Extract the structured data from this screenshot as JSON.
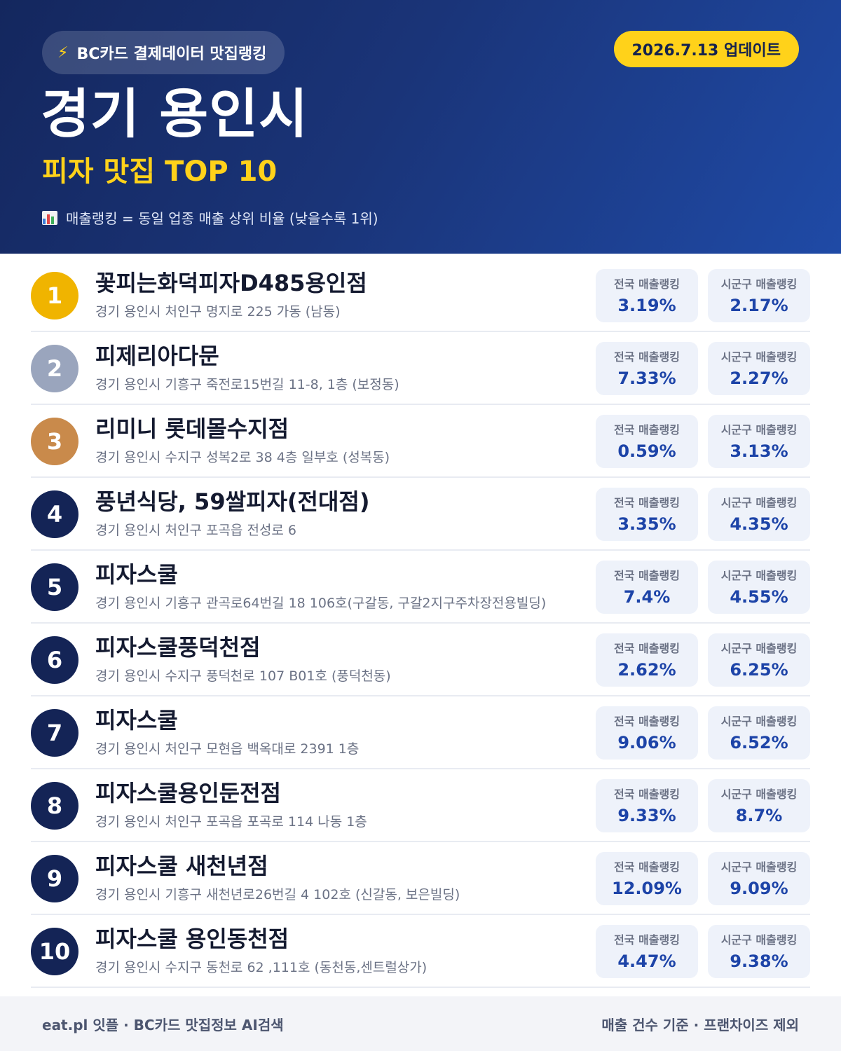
{
  "header": {
    "source_label": "BC카드 결제데이터 맛집랭킹",
    "update_label": "2026.7.13 업데이트",
    "title": "경기 용인시",
    "subtitle": "피자 맛집 TOP 10",
    "note": "매출랭킹 = 동일 업종 매출 상위 비율 (낮을수록 1위)"
  },
  "colors": {
    "gold": "#f0b400",
    "silver": "#9aa5bd",
    "bronze": "#c98a4b",
    "navy": "#142456",
    "accent_yellow": "#ffd21a",
    "value_blue": "#1d44a8"
  },
  "icons": {
    "source": "lightning-icon",
    "note": "bar-chart-icon"
  },
  "labels": {
    "national": "전국 매출랭킹",
    "regional": "시군구 매출랭킹"
  },
  "restaurants": [
    {
      "rank": "1",
      "name": "꽃피는화덕피자D485용인점",
      "address": "경기 용인시 처인구 명지로 225 가동 (남동)",
      "national": "3.19%",
      "regional": "2.17%"
    },
    {
      "rank": "2",
      "name": "피제리아다문",
      "address": "경기 용인시 기흥구 죽전로15번길 11-8, 1층 (보정동)",
      "national": "7.33%",
      "regional": "2.27%"
    },
    {
      "rank": "3",
      "name": "리미니 롯데몰수지점",
      "address": "경기 용인시 수지구 성복2로 38 4층 일부호 (성복동)",
      "national": "0.59%",
      "regional": "3.13%"
    },
    {
      "rank": "4",
      "name": "풍년식당, 59쌀피자(전대점)",
      "address": "경기 용인시 처인구 포곡읍 전성로 6",
      "national": "3.35%",
      "regional": "4.35%"
    },
    {
      "rank": "5",
      "name": "피자스쿨",
      "address": "경기 용인시 기흥구 관곡로64번길 18 106호(구갈동, 구갈2지구주차장전용빌딩)",
      "national": "7.4%",
      "regional": "4.55%"
    },
    {
      "rank": "6",
      "name": "피자스쿨풍덕천점",
      "address": "경기 용인시 수지구 풍덕천로 107 B01호 (풍덕천동)",
      "national": "2.62%",
      "regional": "6.25%"
    },
    {
      "rank": "7",
      "name": "피자스쿨",
      "address": "경기 용인시 처인구 모현읍 백옥대로 2391 1층",
      "national": "9.06%",
      "regional": "6.52%"
    },
    {
      "rank": "8",
      "name": "피자스쿨용인둔전점",
      "address": "경기 용인시 처인구 포곡읍 포곡로 114 나동 1층",
      "national": "9.33%",
      "regional": "8.7%"
    },
    {
      "rank": "9",
      "name": "피자스쿨 새천년점",
      "address": "경기 용인시 기흥구 새천년로26번길 4 102호 (신갈동, 보은빌딩)",
      "national": "12.09%",
      "regional": "9.09%"
    },
    {
      "rank": "10",
      "name": "피자스쿨 용인동천점",
      "address": "경기 용인시 수지구 동천로 62 ,111호 (동천동,센트럴상가)",
      "national": "4.47%",
      "regional": "9.38%"
    }
  ],
  "footer": {
    "left": "eat.pl 잇플 · BC카드 맛집정보 AI검색",
    "right": "매출 건수 기준 · 프랜차이즈 제외"
  }
}
